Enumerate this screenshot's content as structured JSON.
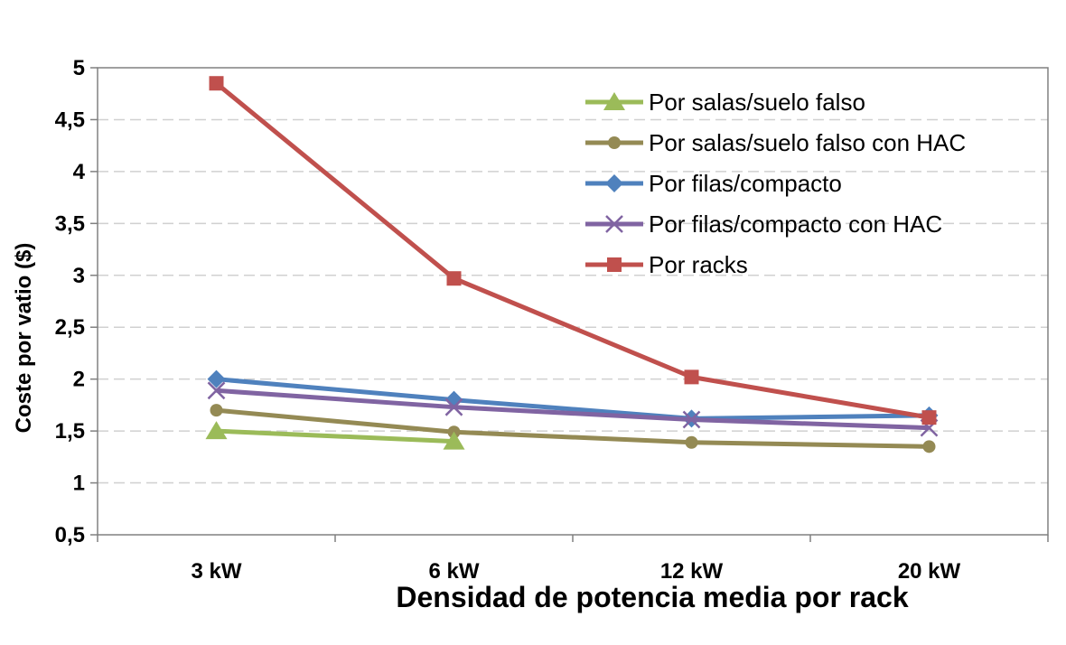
{
  "chart_data": {
    "type": "line",
    "title": "",
    "xlabel": "Densidad de potencia media por rack",
    "ylabel": "Coste por vatio ($)",
    "categories": [
      "3 kW",
      "6 kW",
      "12 kW",
      "20 kW"
    ],
    "y_ticks": [
      "0,5",
      "1",
      "1,5",
      "2",
      "2,5",
      "3",
      "3,5",
      "4",
      "4,5",
      "5"
    ],
    "ylim": [
      0.5,
      5
    ],
    "grid": "horizontal dashed",
    "legend_position": "top-right",
    "series": [
      {
        "name": "Por salas/suelo falso",
        "color": "#9bbb59",
        "marker": "triangle",
        "values": [
          1.5,
          1.4,
          null,
          null
        ]
      },
      {
        "name": "Por salas/suelo falso con HAC",
        "color": "#948a54",
        "marker": "circle",
        "values": [
          1.7,
          1.49,
          1.39,
          1.35
        ]
      },
      {
        "name": "Por filas/compacto",
        "color": "#4f81bd",
        "marker": "diamond",
        "values": [
          2.0,
          1.8,
          1.62,
          1.65
        ]
      },
      {
        "name": "Por filas/compacto con HAC",
        "color": "#8064a2",
        "marker": "x",
        "values": [
          1.89,
          1.73,
          1.61,
          1.53
        ]
      },
      {
        "name": "Por racks",
        "color": "#c0504d",
        "marker": "square",
        "values": [
          4.85,
          2.97,
          2.02,
          1.63
        ]
      }
    ]
  }
}
